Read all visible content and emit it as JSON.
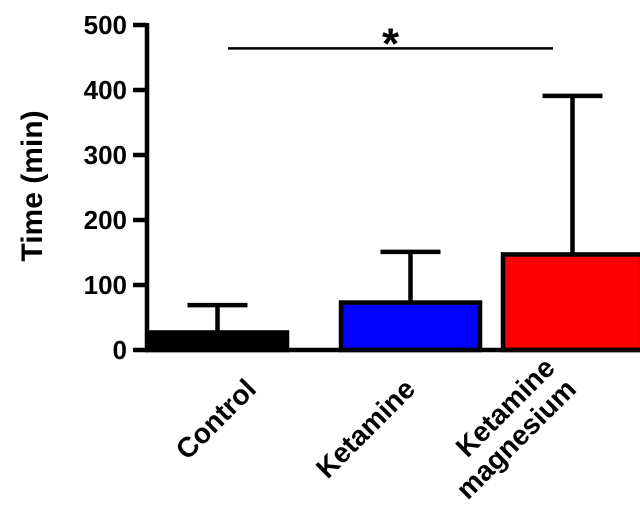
{
  "chart_data": {
    "type": "bar",
    "categories": [
      "Control",
      "Ketamine",
      "Ketamine\nmagnesium"
    ],
    "values": [
      27,
      73,
      147
    ],
    "errors_upper": [
      69,
      151,
      391
    ],
    "colors": [
      "#000000",
      "#0000ff",
      "#ff0000"
    ],
    "ylabel": "Time (min)",
    "xlabel": "",
    "ylim": [
      0,
      500
    ],
    "yticks": [
      0,
      100,
      200,
      300,
      400,
      500
    ],
    "grid": false,
    "legend": "none",
    "annotations": [
      {
        "text": "*",
        "from_category": 0,
        "to_category": 2,
        "y": 464
      }
    ]
  }
}
